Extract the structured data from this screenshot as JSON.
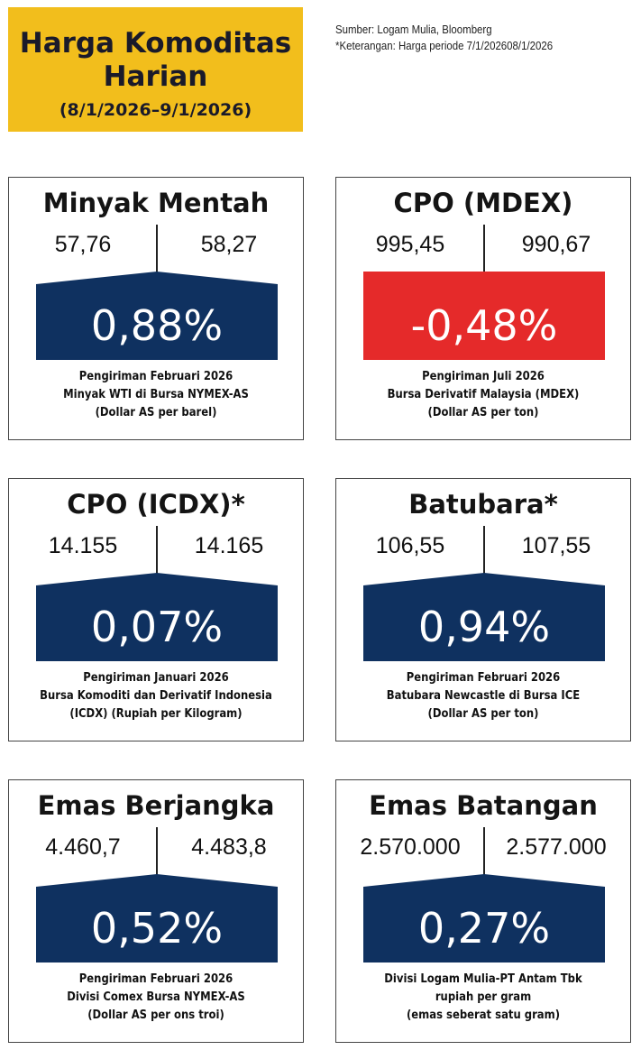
{
  "header": {
    "title_line1": "Harga Komoditas",
    "title_line2": "Harian",
    "date_range": "(8/1/2026–9/1/2026)",
    "source": "Sumber: Logam Mulia, Bloomberg",
    "note": "*Keterangan: Harga periode 7/1/202608/1/2026"
  },
  "colors": {
    "title_bg": "#f2be1c",
    "up": "#0f3160",
    "down": "#e52a2a"
  },
  "cards": [
    {
      "title": "Minyak Mentah",
      "prev": "57,76",
      "curr": "58,27",
      "change": "0,88%",
      "direction": "up",
      "desc1": "Pengiriman Februari 2026",
      "desc2": "Minyak WTI di Bursa NYMEX-AS",
      "desc3": "(Dollar AS per barel)"
    },
    {
      "title": "CPO (MDEX)",
      "prev": "995,45",
      "curr": "990,67",
      "change": "-0,48%",
      "direction": "down",
      "desc1": "Pengiriman Juli 2026",
      "desc2": "Bursa Derivatif Malaysia (MDEX)",
      "desc3": "(Dollar AS per ton)"
    },
    {
      "title": "CPO (ICDX)*",
      "prev": "14.155",
      "curr": "14.165",
      "change": "0,07%",
      "direction": "up",
      "desc1": "Pengiriman Januari 2026",
      "desc2": "Bursa Komoditi dan Derivatif Indonesia",
      "desc3": "(ICDX) (Rupiah per Kilogram)"
    },
    {
      "title": "Batubara*",
      "prev": "106,55",
      "curr": "107,55",
      "change": "0,94%",
      "direction": "up",
      "desc1": "Pengiriman Februari 2026",
      "desc2": "Batubara Newcastle di Bursa ICE",
      "desc3": "(Dollar AS per ton)"
    },
    {
      "title": "Emas Berjangka",
      "prev": "4.460,7",
      "curr": "4.483,8",
      "change": "0,52%",
      "direction": "up",
      "desc1": "Pengiriman Februari 2026",
      "desc2": "Divisi Comex Bursa NYMEX-AS",
      "desc3": "(Dollar AS per ons troi)"
    },
    {
      "title": "Emas Batangan",
      "prev": "2.570.000",
      "curr": "2.577.000",
      "change": "0,27%",
      "direction": "up",
      "desc1": "Divisi Logam Mulia-PT Antam Tbk",
      "desc2": "rupiah per gram",
      "desc3": "(emas seberat satu gram)"
    }
  ]
}
